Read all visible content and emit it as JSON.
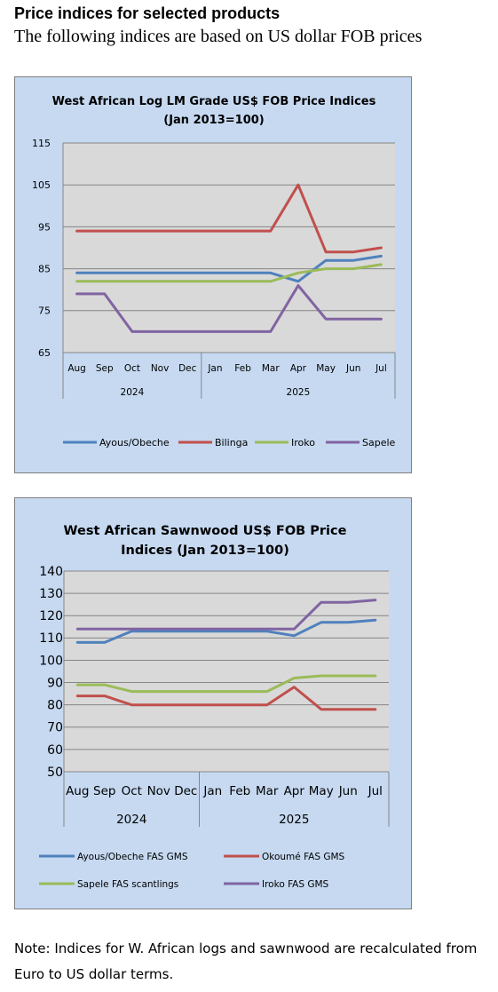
{
  "page": {
    "heading": "Price indices for selected products",
    "subheading": "The following indices are based on US dollar FOB prices",
    "note": "Note: Indices for W. African logs and sawnwood are recalculated from Euro to US dollar terms."
  },
  "chart_data": [
    {
      "type": "line",
      "title_line1": "West African Log LM Grade US$ FOB Price Indices",
      "title_line2": "(Jan 2013=100)",
      "categories": [
        "Aug",
        "Sep",
        "Oct",
        "Nov",
        "Dec",
        "Jan",
        "Feb",
        "Mar",
        "Apr",
        "May",
        "Jun",
        "Jul"
      ],
      "year_groups": [
        {
          "label": "2024",
          "start": 0,
          "end": 4
        },
        {
          "label": "2025",
          "start": 5,
          "end": 11
        }
      ],
      "ylim": [
        65,
        115
      ],
      "yticks": [
        65,
        75,
        85,
        95,
        105,
        115
      ],
      "grid": true,
      "legend_position": "bottom",
      "series": [
        {
          "name": "Ayous/Obeche",
          "color": "#4f81bd",
          "values": [
            84,
            84,
            84,
            84,
            84,
            84,
            84,
            84,
            82,
            87,
            87,
            88
          ]
        },
        {
          "name": "Bilinga",
          "color": "#c0504d",
          "values": [
            94,
            94,
            94,
            94,
            94,
            94,
            94,
            94,
            105,
            89,
            89,
            90
          ]
        },
        {
          "name": "Iroko",
          "color": "#9bbb59",
          "values": [
            82,
            82,
            82,
            82,
            82,
            82,
            82,
            82,
            84,
            85,
            85,
            86
          ]
        },
        {
          "name": "Sapele",
          "color": "#8064a2",
          "values": [
            79,
            79,
            70,
            70,
            70,
            70,
            70,
            70,
            81,
            73,
            73,
            73
          ]
        }
      ]
    },
    {
      "type": "line",
      "title_line1": "West African Sawnwood US$ FOB Price",
      "title_line2": "Indices (Jan 2013=100)",
      "categories": [
        "Aug",
        "Sep",
        "Oct",
        "Nov",
        "Dec",
        "Jan",
        "Feb",
        "Mar",
        "Apr",
        "May",
        "Jun",
        "Jul"
      ],
      "year_groups": [
        {
          "label": "2024",
          "start": 0,
          "end": 4
        },
        {
          "label": "2025",
          "start": 5,
          "end": 11
        }
      ],
      "ylim": [
        50,
        140
      ],
      "yticks": [
        50,
        60,
        70,
        80,
        90,
        100,
        110,
        120,
        130,
        140
      ],
      "grid": true,
      "legend_position": "bottom",
      "series": [
        {
          "name": "Ayous/Obeche  FAS GMS",
          "color": "#4f81bd",
          "values": [
            108,
            108,
            113,
            113,
            113,
            113,
            113,
            113,
            111,
            117,
            117,
            118
          ]
        },
        {
          "name": "Okoumé  FAS GMS",
          "color": "#c0504d",
          "values": [
            84,
            84,
            80,
            80,
            80,
            80,
            80,
            80,
            88,
            78,
            78,
            78
          ]
        },
        {
          "name": "Sapele FAS scantlings",
          "color": "#9bbb59",
          "values": [
            89,
            89,
            86,
            86,
            86,
            86,
            86,
            86,
            92,
            93,
            93,
            93
          ]
        },
        {
          "name": "Iroko FAS GMS",
          "color": "#8064a2",
          "values": [
            114,
            114,
            114,
            114,
            114,
            114,
            114,
            114,
            114,
            126,
            126,
            127
          ]
        }
      ]
    }
  ]
}
